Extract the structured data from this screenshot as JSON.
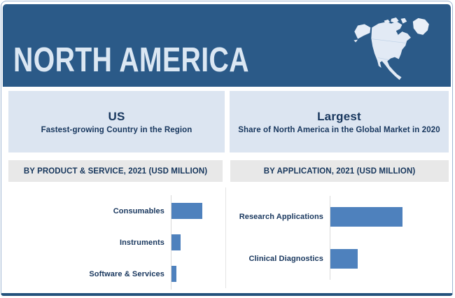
{
  "header": {
    "title": "NORTH AMERICA",
    "background_color": "#2b5a88",
    "title_color": "#dbe7f3",
    "map_icon": "north-america-map"
  },
  "highlights": [
    {
      "heading": "US",
      "subheading": "Fastest-growing Country in the Region"
    },
    {
      "heading": "Largest",
      "subheading": "Share of North America in the Global Market in 2020"
    }
  ],
  "chart_data": [
    {
      "type": "bar",
      "orientation": "horizontal",
      "section_title": "BY PRODUCT & SERVICE, 2021 (USD MILLION)",
      "categories": [
        "Consumables",
        "Instruments",
        "Software & Services"
      ],
      "values": [
        44,
        13,
        7
      ],
      "units": "relative length (no numeric axis labels shown)",
      "bar_color": "#4e81bd",
      "axis_line_color": "#d9d9d9",
      "grid": false,
      "legend": false
    },
    {
      "type": "bar",
      "orientation": "horizontal",
      "section_title": "BY APPLICATION, 2021 (USD MILLION)",
      "categories": [
        "Research Applications",
        "Clinical Diagnostics"
      ],
      "values": [
        103,
        39
      ],
      "units": "relative length (no numeric axis labels shown)",
      "bar_color": "#4e81bd",
      "axis_line_color": "#d9d9d9",
      "grid": false,
      "legend": false
    }
  ],
  "colors": {
    "card_border": "#9fb6d2",
    "card_bottom_border": "#24527c",
    "panel_background": "#dce5f1",
    "band_background": "#e8e8e8",
    "text_dark_navy": "#17365d",
    "bar_blue": "#4e81bd"
  }
}
